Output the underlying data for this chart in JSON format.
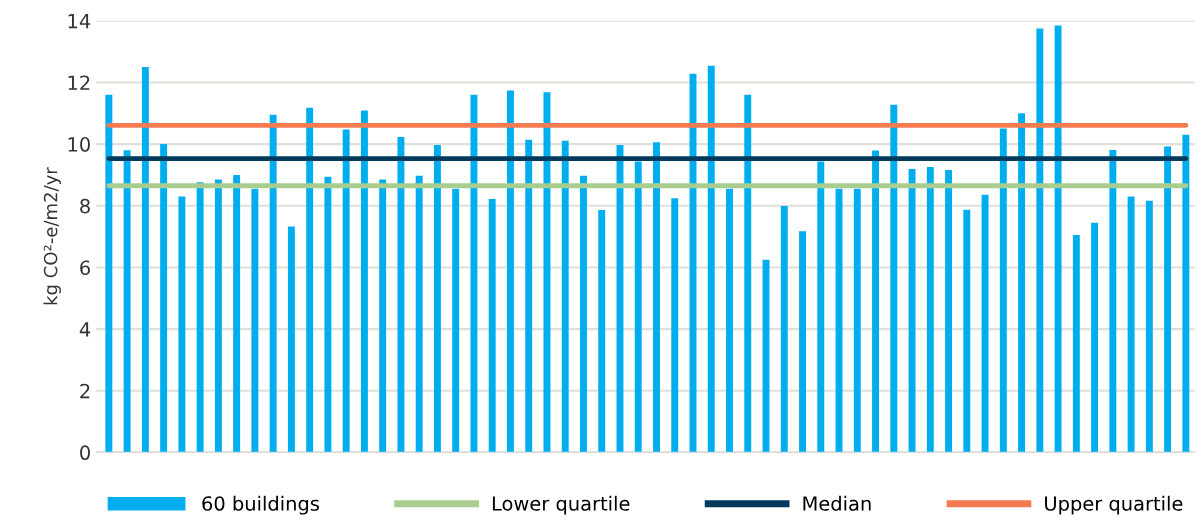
{
  "chart_data": {
    "type": "bar",
    "ylabel": "kg CO²-e/m2/yr",
    "categories": [
      null,
      null,
      null,
      null,
      null,
      null,
      null,
      null,
      null,
      null,
      null,
      null,
      null,
      null,
      null,
      null,
      null,
      null,
      null,
      null,
      null,
      null,
      null,
      null,
      null,
      null,
      null,
      null,
      null,
      null,
      null,
      null,
      null,
      null,
      null,
      null,
      null,
      null,
      null,
      null,
      null,
      null,
      null,
      null,
      null,
      null,
      null,
      null,
      null,
      null,
      null,
      null,
      null,
      null,
      null,
      null,
      null,
      null,
      null,
      null
    ],
    "series": [
      {
        "name": "60 buildings",
        "color": "#00aeef",
        "values": [
          11.6,
          9.8,
          12.5,
          10.0,
          8.3,
          8.76,
          8.85,
          9.0,
          8.55,
          10.95,
          7.33,
          11.18,
          8.94,
          10.47,
          11.09,
          8.85,
          10.23,
          8.97,
          9.97,
          8.55,
          11.6,
          8.22,
          11.74,
          10.14,
          11.68,
          10.11,
          8.97,
          7.86,
          9.97,
          9.44,
          10.06,
          8.24,
          12.28,
          12.54,
          8.55,
          11.6,
          6.25,
          7.99,
          7.17,
          9.44,
          8.55,
          8.55,
          9.79,
          11.28,
          9.19,
          9.26,
          9.16,
          7.87,
          8.36,
          10.51,
          11.0,
          13.75,
          13.85,
          7.05,
          7.45,
          9.81,
          8.3,
          8.16,
          9.92,
          10.3
        ]
      }
    ],
    "ref_lines": [
      {
        "axis": "y",
        "value": 8.65,
        "label": "Lower quartile",
        "color": "#a9cd8e"
      },
      {
        "axis": "y",
        "value": 9.53,
        "label": "Median",
        "color": "#003a5d"
      },
      {
        "axis": "y",
        "value": 10.61,
        "label": "Upper quartile",
        "color": "#f47a50"
      }
    ],
    "ylim": [
      0,
      14
    ],
    "yticks": [
      0,
      2,
      4,
      6,
      8,
      10,
      12,
      14
    ],
    "grid": "y",
    "legend": "bottom"
  }
}
